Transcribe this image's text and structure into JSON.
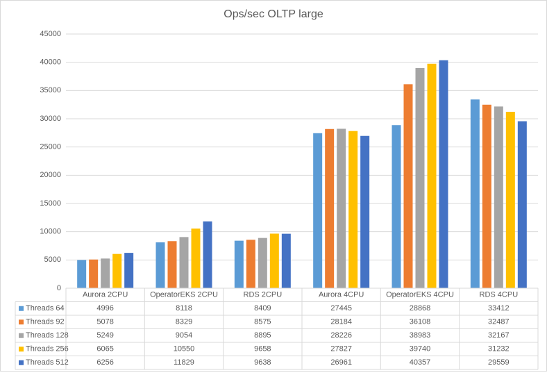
{
  "chart_data": {
    "type": "bar",
    "title": "Ops/sec OLTP large",
    "categories": [
      "Aurora 2CPU",
      "OperatorEKS 2CPU",
      "RDS 2CPU",
      "Aurora 4CPU",
      "OperatorEKS 4CPU",
      "RDS 4CPU"
    ],
    "series": [
      {
        "name": "Threads 64",
        "color": "#5b9bd5",
        "values": [
          4996,
          8118,
          8409,
          27445,
          28868,
          33412
        ]
      },
      {
        "name": "Threads 92",
        "color": "#ed7d31",
        "values": [
          5078,
          8329,
          8575,
          28184,
          36108,
          32487
        ]
      },
      {
        "name": "Threads 128",
        "color": "#a5a5a5",
        "values": [
          5249,
          9054,
          8895,
          28226,
          38983,
          32167
        ]
      },
      {
        "name": "Threads 256",
        "color": "#ffc000",
        "values": [
          6065,
          10550,
          9658,
          27827,
          39740,
          31232
        ]
      },
      {
        "name": "Threads 512",
        "color": "#4472c4",
        "values": [
          6256,
          11829,
          9638,
          26961,
          40357,
          29559
        ]
      }
    ],
    "ylim": [
      0,
      45000
    ],
    "yticks": [
      0,
      5000,
      10000,
      15000,
      20000,
      25000,
      30000,
      35000,
      40000,
      45000
    ],
    "grid": true
  }
}
